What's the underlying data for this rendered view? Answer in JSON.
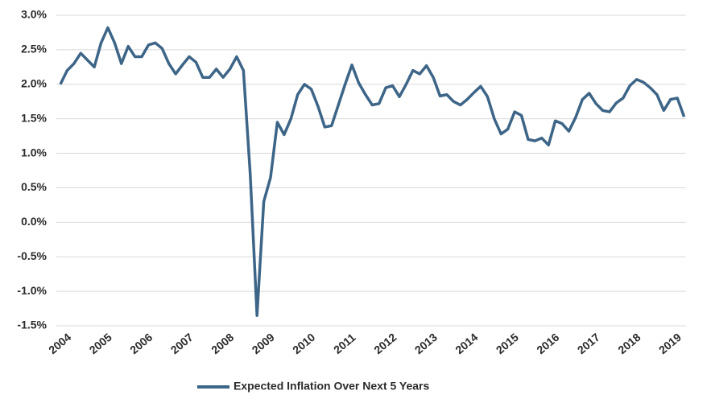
{
  "chart_data": {
    "type": "line",
    "categories": [
      "2004",
      null,
      null,
      null,
      null,
      null,
      "2005",
      null,
      null,
      null,
      null,
      null,
      "2006",
      null,
      null,
      null,
      null,
      null,
      "2007",
      null,
      null,
      null,
      null,
      null,
      "2008",
      null,
      null,
      null,
      null,
      null,
      "2009",
      null,
      null,
      null,
      null,
      null,
      "2010",
      null,
      null,
      null,
      null,
      null,
      "2011",
      null,
      null,
      null,
      null,
      null,
      "2012",
      null,
      null,
      null,
      null,
      null,
      "2013",
      null,
      null,
      null,
      null,
      null,
      "2014",
      null,
      null,
      null,
      null,
      null,
      "2015",
      null,
      null,
      null,
      null,
      null,
      "2016",
      null,
      null,
      null,
      null,
      null,
      "2017",
      null,
      null,
      null,
      null,
      null,
      "2018",
      null,
      null,
      null,
      null,
      null,
      "2019",
      null,
      null
    ],
    "series": [
      {
        "name": "Expected Inflation Over Next 5 Years",
        "color": "#3d6587",
        "values": [
          2.0,
          2.2,
          2.3,
          2.45,
          2.35,
          2.25,
          2.6,
          2.82,
          2.6,
          2.3,
          2.55,
          2.4,
          2.4,
          2.57,
          2.6,
          2.52,
          2.3,
          2.15,
          2.28,
          2.4,
          2.32,
          2.1,
          2.1,
          2.22,
          2.1,
          2.22,
          2.4,
          2.2,
          0.7,
          -1.35,
          0.3,
          0.65,
          1.45,
          1.27,
          1.5,
          1.85,
          2.0,
          1.93,
          1.68,
          1.38,
          1.4,
          1.7,
          2.0,
          2.28,
          2.02,
          1.85,
          1.7,
          1.72,
          1.95,
          1.98,
          1.82,
          2.0,
          2.2,
          2.15,
          2.27,
          2.1,
          1.83,
          1.85,
          1.75,
          1.7,
          1.78,
          1.88,
          1.97,
          1.82,
          1.5,
          1.28,
          1.35,
          1.6,
          1.55,
          1.2,
          1.18,
          1.22,
          1.12,
          1.47,
          1.43,
          1.32,
          1.52,
          1.78,
          1.87,
          1.72,
          1.62,
          1.6,
          1.73,
          1.8,
          1.98,
          2.07,
          2.03,
          1.95,
          1.85,
          1.62,
          1.78,
          1.8,
          1.53
        ]
      }
    ],
    "ylim": [
      -1.5,
      3.0
    ],
    "yticks": [
      {
        "value": -1.5,
        "label": "-1.5%"
      },
      {
        "value": -1.0,
        "label": "-1.0%"
      },
      {
        "value": -0.5,
        "label": "-0.5%"
      },
      {
        "value": 0,
        "label": "0.0%"
      },
      {
        "value": 0.5,
        "label": "0.5%"
      },
      {
        "value": 1.0,
        "label": "1.0%"
      },
      {
        "value": 1.5,
        "label": "1.5%"
      },
      {
        "value": 2.0,
        "label": "2.0%"
      },
      {
        "value": 2.5,
        "label": "2.5%"
      },
      {
        "value": 3.0,
        "label": "3.0%"
      }
    ],
    "grid": true,
    "legend": "bottom"
  }
}
